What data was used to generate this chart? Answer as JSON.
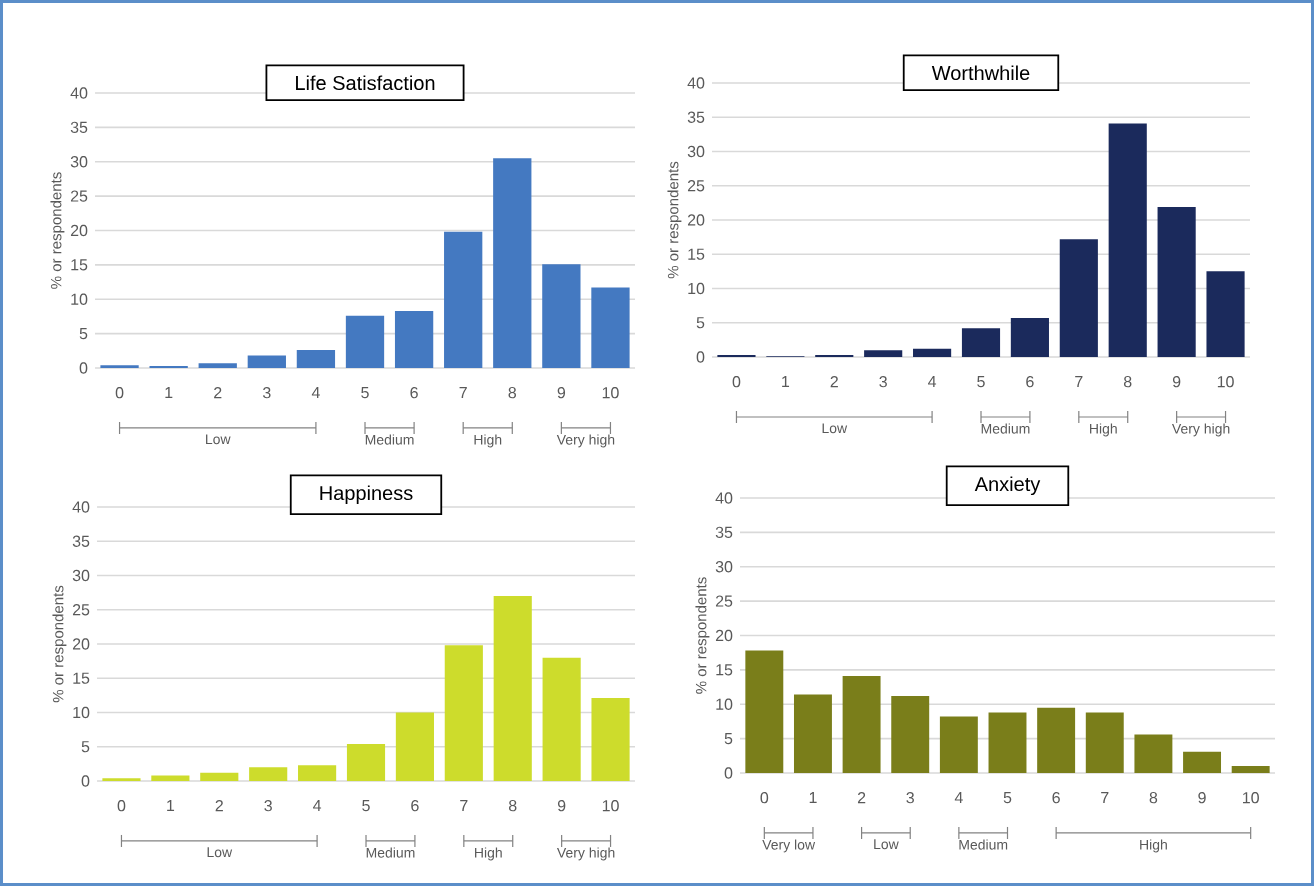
{
  "chart_data": [
    {
      "type": "bar",
      "title": "Life Satisfaction",
      "ylabel": "% or respondents",
      "x": [
        0,
        1,
        2,
        3,
        4,
        5,
        6,
        7,
        8,
        9,
        10
      ],
      "values": [
        0.4,
        0.3,
        0.7,
        1.8,
        2.6,
        7.6,
        8.3,
        19.8,
        30.5,
        15.1,
        11.7
      ],
      "color": "#4479c1",
      "xlim": [
        -0.5,
        10.5
      ],
      "xticks": [
        0,
        1,
        2,
        3,
        4,
        5,
        6,
        7,
        8,
        9,
        10
      ],
      "ylim": [
        0,
        40
      ],
      "yticks": [
        0,
        5,
        10,
        15,
        20,
        25,
        30,
        35,
        40
      ],
      "grid": "y",
      "annotations": [
        "Low",
        "Medium",
        "High",
        "Very high"
      ]
    },
    {
      "type": "bar",
      "title": "Worthwhile",
      "ylabel": "% or respondents",
      "x": [
        0,
        1,
        2,
        3,
        4,
        5,
        6,
        7,
        8,
        9,
        10
      ],
      "values": [
        0.3,
        0.1,
        0.3,
        1.0,
        1.2,
        4.2,
        5.7,
        17.2,
        34.1,
        21.9,
        12.5
      ],
      "color": "#1b2a5c",
      "xlim": [
        -0.5,
        10.5
      ],
      "xticks": [
        0,
        1,
        2,
        3,
        4,
        5,
        6,
        7,
        8,
        9,
        10
      ],
      "ylim": [
        0,
        40
      ],
      "yticks": [
        0,
        5,
        10,
        15,
        20,
        25,
        30,
        35,
        40
      ],
      "grid": "y",
      "annotations": [
        "Low",
        "Medium",
        "High",
        "Very high"
      ]
    },
    {
      "type": "bar",
      "title": "Happiness",
      "ylabel": "% or respondents",
      "x": [
        0,
        1,
        2,
        3,
        4,
        5,
        6,
        7,
        8,
        9,
        10
      ],
      "values": [
        0.4,
        0.8,
        1.2,
        2.0,
        2.3,
        5.4,
        10.0,
        19.8,
        27.0,
        18.0,
        12.1
      ],
      "color": "#cddc2c",
      "xlim": [
        -0.5,
        10.5
      ],
      "xticks": [
        0,
        1,
        2,
        3,
        4,
        5,
        6,
        7,
        8,
        9,
        10
      ],
      "ylim": [
        0,
        40
      ],
      "yticks": [
        0,
        5,
        10,
        15,
        20,
        25,
        30,
        35,
        40
      ],
      "grid": "y",
      "annotations": [
        "Low",
        "Medium",
        "High",
        "Very high"
      ]
    },
    {
      "type": "bar",
      "title": "Anxiety",
      "ylabel": "% or respondents",
      "x": [
        0,
        1,
        2,
        3,
        4,
        5,
        6,
        7,
        8,
        9,
        10
      ],
      "values": [
        17.8,
        11.4,
        14.1,
        11.2,
        8.2,
        8.8,
        9.5,
        8.8,
        5.6,
        3.1,
        1.0
      ],
      "color": "#7a7e1a",
      "xlim": [
        -0.5,
        10.5
      ],
      "xticks": [
        0,
        1,
        2,
        3,
        4,
        5,
        6,
        7,
        8,
        9,
        10
      ],
      "ylim": [
        0,
        40
      ],
      "yticks": [
        0,
        5,
        10,
        15,
        20,
        25,
        30,
        35,
        40
      ],
      "grid": "y",
      "annotations": [
        "Very low",
        "Low",
        "Medium",
        "High"
      ]
    }
  ]
}
